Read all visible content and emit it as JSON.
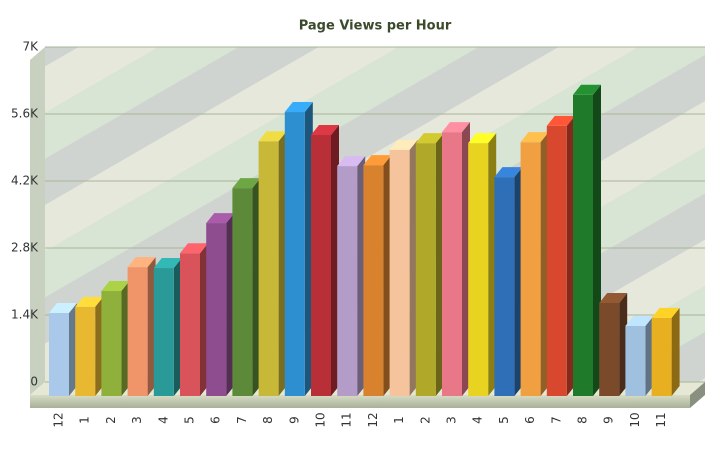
{
  "chart_data": {
    "type": "bar3d",
    "title": "Page Views per Hour",
    "categories": [
      "12",
      "1",
      "2",
      "3",
      "4",
      "5",
      "6",
      "7",
      "8",
      "9",
      "10",
      "11",
      "12",
      "1",
      "2",
      "3",
      "4",
      "5",
      "6",
      "7",
      "8",
      "9",
      "10",
      "11"
    ],
    "values": [
      1650,
      1780,
      2110,
      2610,
      2590,
      2900,
      3530,
      4260,
      5240,
      5850,
      5370,
      4720,
      4740,
      5060,
      5200,
      5430,
      5200,
      4490,
      5220,
      5560,
      6210,
      1860,
      1380,
      1550
    ],
    "colors": [
      "#a9c8ea",
      "#e8b830",
      "#8fb03a",
      "#f0956a",
      "#2a9a98",
      "#d9535b",
      "#8e4d8e",
      "#5c8a38",
      "#c8b838",
      "#2e8fd0",
      "#b82f38",
      "#b49cc8",
      "#d8822e",
      "#f5c49c",
      "#b0a828",
      "#e87888",
      "#e8d420",
      "#2f6fb8",
      "#f0a040",
      "#d8482e",
      "#1f7a2a",
      "#7a4a2a",
      "#a0c0e0",
      "#e8b020"
    ],
    "ylim": [
      0,
      7000
    ],
    "yticks": [
      0,
      {
        "value": 1400,
        "label": "1.4K"
      },
      {
        "value": 2800,
        "label": "2.8K"
      },
      {
        "value": 4200,
        "label": "4.2K"
      },
      {
        "value": 5600,
        "label": "5.6K"
      },
      {
        "value": 7000,
        "label": "7K"
      }
    ],
    "grid": true
  }
}
